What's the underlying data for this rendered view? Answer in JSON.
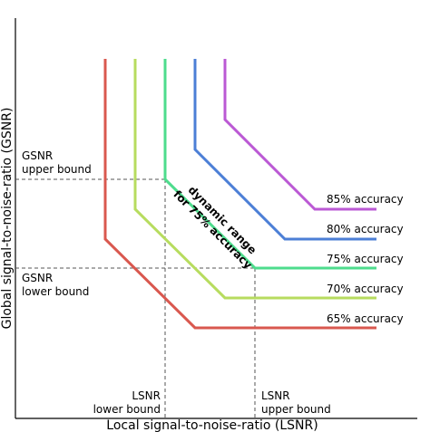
{
  "axes": {
    "xlabel": "Local signal-to-noise-ratio (LSNR)",
    "ylabel": "Global signal-to-noise-ratio (GSNR)"
  },
  "bounds": {
    "gsnr_upper": [
      "GSNR",
      "upper bound"
    ],
    "gsnr_lower": [
      "GSNR",
      "lower bound"
    ],
    "lsnr_lower": [
      "LSNR",
      "lower bound"
    ],
    "lsnr_upper": [
      "LSNR",
      "upper bound"
    ]
  },
  "curves": [
    {
      "label": "65% accuracy",
      "color": "#d9584f"
    },
    {
      "label": "70% accuracy",
      "color": "#b7dc5f"
    },
    {
      "label": "75% accuracy",
      "color": "#4edc8d"
    },
    {
      "label": "80% accuracy",
      "color": "#4c7fd6"
    },
    {
      "label": "85% accuracy",
      "color": "#bb59d4"
    }
  ],
  "dynamic_range": [
    "dynamic range",
    "for 75% accuracy"
  ]
}
